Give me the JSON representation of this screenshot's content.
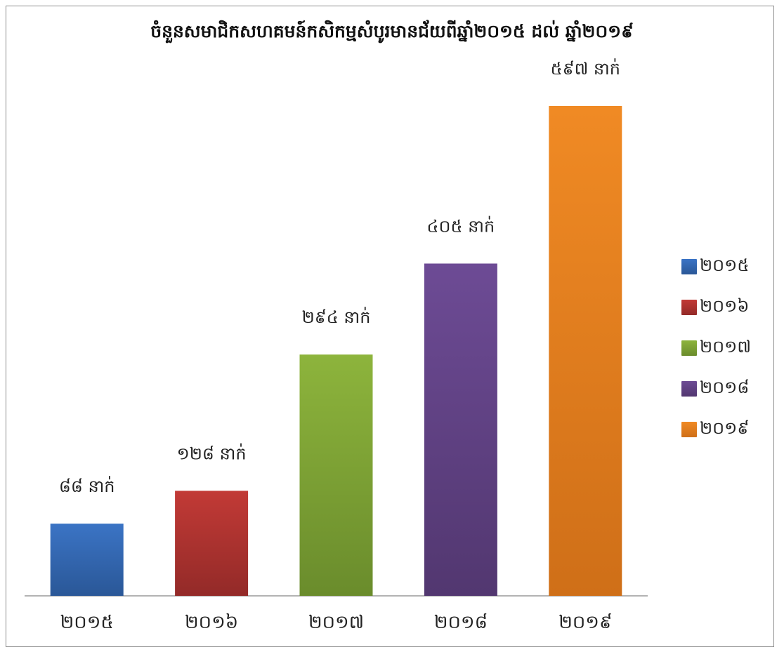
{
  "chart_data": {
    "type": "bar",
    "title": "ចំនួនសមាជិកសហគមន៍កសិកម្មសំបូរមានជ័យពីឆ្នាំ២០១៥ ដល់ ឆ្នាំ២០១៩",
    "xlabel": "",
    "ylabel": "",
    "categories": [
      "២០១៥",
      "២០១៦",
      "២០១៧",
      "២០១៨",
      "២០១៩"
    ],
    "values": [
      88,
      128,
      294,
      405,
      597
    ],
    "data_labels": [
      "៨៨ នាក់",
      "១២៨ នាក់",
      "២៩៤ នាក់",
      "៤០៥ នាក់",
      "៥៩៧ នាក់"
    ],
    "colors": [
      "#3b74c5",
      "#c23a36",
      "#8db43c",
      "#6d4b95",
      "#f08a24"
    ],
    "colors_dark": [
      "#2a5797",
      "#932a28",
      "#6a8c2c",
      "#523770",
      "#cf6f18"
    ],
    "legend": {
      "placement": "right",
      "entries": [
        "២០១៥",
        "២០១៦",
        "២០១៧",
        "២០១៨",
        "២០១៩"
      ]
    },
    "ylim": [
      0,
      650
    ],
    "grid": false
  }
}
